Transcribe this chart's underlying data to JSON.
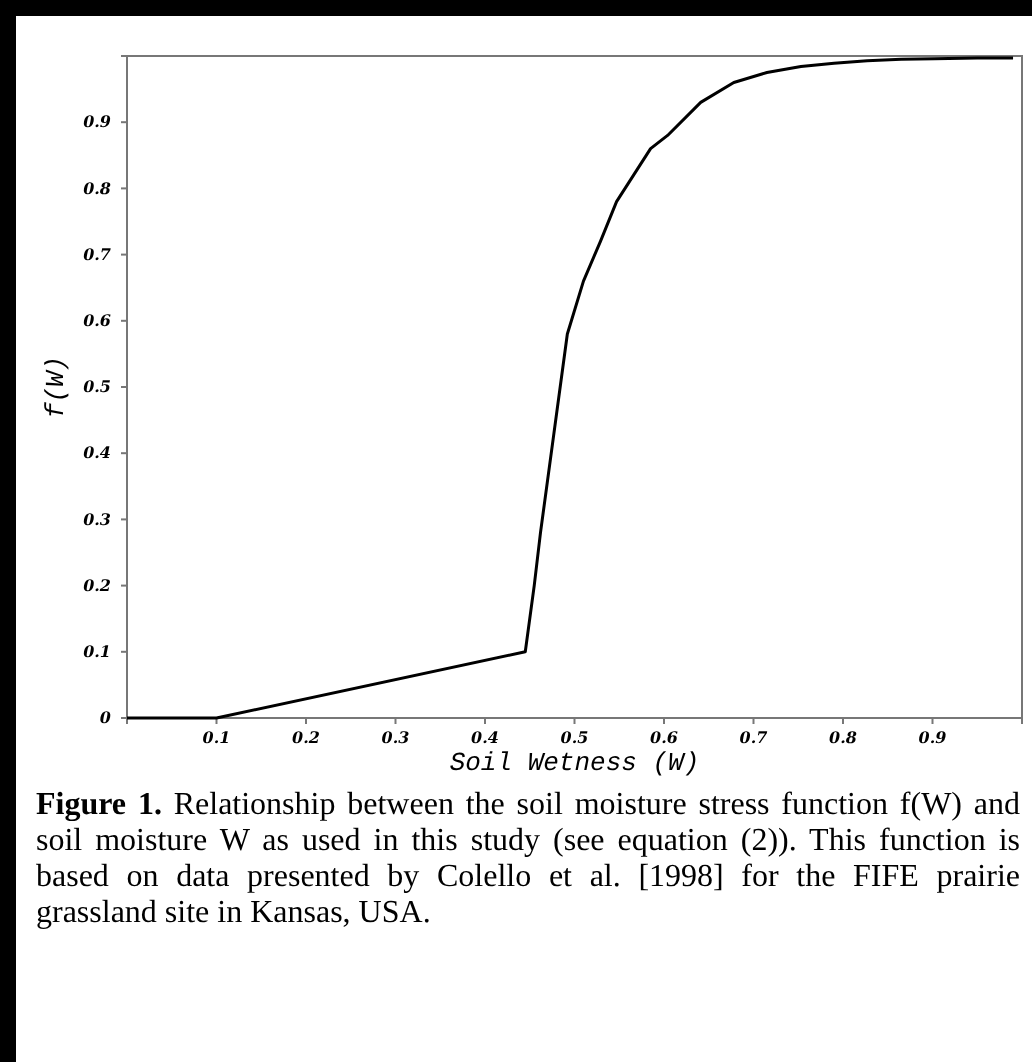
{
  "chart_data": {
    "type": "line",
    "xlabel": "Soil Wetness (W)",
    "ylabel": "f(W)",
    "xlim": [
      0,
      1
    ],
    "ylim": [
      0,
      1
    ],
    "xticks": [
      0.1,
      0.2,
      0.3,
      0.4,
      0.5,
      0.6,
      0.7,
      0.8,
      0.9
    ],
    "yticks": [
      0,
      0.1,
      0.2,
      0.3,
      0.4,
      0.5,
      0.6,
      0.7,
      0.8,
      0.9
    ],
    "grid": false,
    "marker": "none",
    "line_style": "solid",
    "series": [
      {
        "color": "#000000",
        "x": [
          0,
          0.1,
          0.445,
          0.455,
          0.462,
          0.477,
          0.492,
          0.51,
          0.529,
          0.547,
          0.566,
          0.585,
          0.604,
          0.641,
          0.678,
          0.715,
          0.753,
          0.79,
          0.827,
          0.865,
          0.902,
          0.95,
          0.99
        ],
        "values": [
          0,
          0,
          0.1,
          0.2,
          0.28,
          0.43,
          0.58,
          0.66,
          0.72,
          0.78,
          0.82,
          0.86,
          0.88,
          0.93,
          0.96,
          0.975,
          0.984,
          0.989,
          0.993,
          0.995,
          0.996,
          0.997,
          0.997
        ]
      }
    ],
    "annotations": [
      "Figure 1. Relationship between the soil moisture stress function f(W) and soil moisture W as used in this study (see equation (2)). This function is based on data presented by Colello et al. [1998] for the FIFE prairie grassland site in Kansas, USA."
    ]
  }
}
